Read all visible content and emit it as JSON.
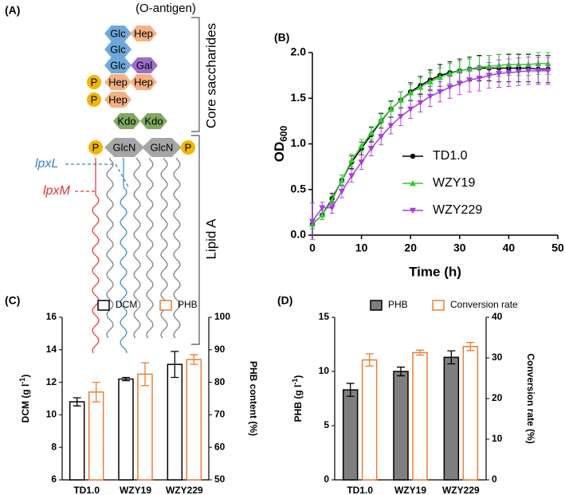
{
  "diagram": {
    "panel": "(A)",
    "antigen": "(O-antigen)",
    "nodes": [
      "Glc",
      "Hep",
      "Glc",
      "Glc",
      "Gal",
      "P",
      "Hep",
      "Hep",
      "P",
      "Hep",
      "Kdo",
      "Kdo",
      "P",
      "GlcN",
      "GlcN",
      "P"
    ],
    "core_label": "Core saccharides",
    "lipid_label": "Lipid A",
    "genes": [
      "lpxL",
      "lpxM"
    ]
  },
  "chart_data": [
    {
      "type": "line",
      "panel": "(B)",
      "xlabel": "Time (h)",
      "ylabel": "OD",
      "ylabel_subscript": "600",
      "x": [
        0,
        2,
        4,
        6,
        8,
        10,
        12,
        14,
        16,
        18,
        20,
        22,
        24,
        26,
        28,
        30,
        32,
        34,
        36,
        38,
        40,
        42,
        44,
        46,
        48
      ],
      "xlim": [
        0,
        50
      ],
      "xticks": [
        0,
        10,
        20,
        30,
        40,
        50
      ],
      "ylim": [
        0,
        2
      ],
      "yticks": [
        {
          "value": 0,
          "label": "0.0"
        },
        {
          "value": 0.5,
          "label": "0.5"
        },
        {
          "value": 1,
          "label": "1.0"
        },
        {
          "value": 1.5,
          "label": "1.5"
        },
        {
          "value": 2,
          "label": "2.0"
        }
      ],
      "legend": "right",
      "series": [
        {
          "name": "TD1.0",
          "color": "#000000",
          "marker": "circle",
          "values": [
            0.12,
            0.22,
            0.4,
            0.6,
            0.8,
            0.95,
            1.1,
            1.25,
            1.38,
            1.48,
            1.57,
            1.64,
            1.7,
            1.75,
            1.78,
            1.8,
            1.82,
            1.83,
            1.83,
            1.83,
            1.83,
            1.83,
            1.83,
            1.82,
            1.82
          ],
          "errors": [
            0.05,
            0.05,
            0.06,
            0.06,
            0.07,
            0.07,
            0.08,
            0.08,
            0.09,
            0.09,
            0.1,
            0.1,
            0.11,
            0.12,
            0.12,
            0.13,
            0.13,
            0.14,
            0.14,
            0.15,
            0.15,
            0.15,
            0.15,
            0.15,
            0.15
          ]
        },
        {
          "name": "WZY19",
          "color": "#33cc33",
          "marker": "triangle-up",
          "values": [
            0.12,
            0.22,
            0.38,
            0.6,
            0.82,
            0.98,
            1.12,
            1.26,
            1.38,
            1.48,
            1.56,
            1.62,
            1.68,
            1.73,
            1.77,
            1.8,
            1.82,
            1.84,
            1.85,
            1.86,
            1.87,
            1.87,
            1.87,
            1.88,
            1.88
          ],
          "errors": [
            0.05,
            0.05,
            0.06,
            0.06,
            0.07,
            0.07,
            0.07,
            0.08,
            0.08,
            0.09,
            0.09,
            0.1,
            0.1,
            0.1,
            0.11,
            0.11,
            0.11,
            0.12,
            0.12,
            0.12,
            0.12,
            0.12,
            0.12,
            0.12,
            0.12
          ]
        },
        {
          "name": "WZY229",
          "color": "#a63de0",
          "marker": "triangle-down",
          "values": [
            0.15,
            0.3,
            0.3,
            0.48,
            0.65,
            0.8,
            0.95,
            1.08,
            1.2,
            1.3,
            1.38,
            1.45,
            1.52,
            1.57,
            1.62,
            1.66,
            1.7,
            1.72,
            1.75,
            1.77,
            1.78,
            1.79,
            1.8,
            1.8,
            1.8
          ],
          "errors": [
            0.2,
            0.06,
            0.06,
            0.07,
            0.07,
            0.08,
            0.08,
            0.09,
            0.09,
            0.1,
            0.1,
            0.1,
            0.11,
            0.11,
            0.12,
            0.12,
            0.13,
            0.14,
            0.14,
            0.15,
            0.15,
            0.15,
            0.15,
            0.15,
            0.15
          ]
        }
      ]
    },
    {
      "type": "bar",
      "panel": "(C)",
      "ylabel": [
        "DCM (g l",
        "-1",
        ")"
      ],
      "y2label": "PHB content (%)",
      "categories": [
        "TD1.0",
        "WZY19",
        "WZY229"
      ],
      "ylim": [
        6,
        16
      ],
      "yticks": [
        6,
        8,
        10,
        12,
        14,
        16
      ],
      "y2lim": [
        50,
        100
      ],
      "y2ticks": [
        50,
        60,
        70,
        80,
        90,
        100
      ],
      "series": [
        {
          "name": "DCM",
          "color": "#000000",
          "fill": "#ffffff",
          "values": [
            10.8,
            12.2,
            13.1
          ],
          "errors": [
            0.25,
            0.1,
            0.8
          ]
        },
        {
          "name": "PHB",
          "color": "#ed7d31",
          "fill": "#ffffff",
          "axis": "y2",
          "values": [
            77,
            82.5,
            87
          ],
          "errors": [
            3,
            3.5,
            1.5
          ]
        }
      ]
    },
    {
      "type": "bar",
      "panel": "(D)",
      "ylabel": [
        "PHB (g l",
        "-1",
        ")"
      ],
      "y2label": "Conversion rate (%)",
      "categories": [
        "TD1.0",
        "WZY19",
        "WZY229"
      ],
      "ylim": [
        0,
        15
      ],
      "yticks": [
        0,
        5,
        10,
        15
      ],
      "y2lim": [
        0,
        40
      ],
      "y2ticks": [
        0,
        10,
        20,
        30,
        40
      ],
      "series": [
        {
          "name": "PHB",
          "color": "#000000",
          "fill": "#7f7f7f",
          "values": [
            8.3,
            10,
            11.3
          ],
          "errors": [
            0.6,
            0.4,
            0.6
          ]
        },
        {
          "name": "Conversion rate",
          "color": "#ed7d31",
          "fill": "#ffffff",
          "axis": "y2",
          "values": [
            29.5,
            31.3,
            32.8
          ],
          "errors": [
            1.5,
            0.6,
            1
          ]
        }
      ]
    }
  ]
}
